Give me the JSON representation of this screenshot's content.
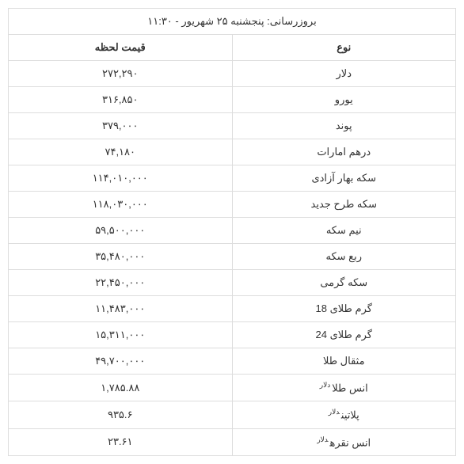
{
  "update_label": "بروزرسانی: پنجشنبه ۲۵ شهریور - ۱۱:۳۰",
  "columns": {
    "type": "نوع",
    "price": "قیمت لحظه"
  },
  "usd_suffix": "دلار",
  "rows": [
    {
      "type": "دلار",
      "price": "۲۷۲,۲۹۰",
      "usd": false
    },
    {
      "type": "یورو",
      "price": "۳۱۶,۸۵۰",
      "usd": false
    },
    {
      "type": "پوند",
      "price": "۳۷۹,۰۰۰",
      "usd": false
    },
    {
      "type": "درهم امارات",
      "price": "۷۴,۱۸۰",
      "usd": false
    },
    {
      "type": "سکه بهار آزادی",
      "price": "۱۱۴,۰۱۰,۰۰۰",
      "usd": false
    },
    {
      "type": "سکه طرح جدید",
      "price": "۱۱۸,۰۳۰,۰۰۰",
      "usd": false
    },
    {
      "type": "نیم سکه",
      "price": "۵۹,۵۰۰,۰۰۰",
      "usd": false
    },
    {
      "type": "ربع سکه",
      "price": "۳۵,۴۸۰,۰۰۰",
      "usd": false
    },
    {
      "type": "سکه گرمی",
      "price": "۲۲,۴۵۰,۰۰۰",
      "usd": false
    },
    {
      "type": "گرم طلای 18",
      "price": "۱۱,۴۸۳,۰۰۰",
      "usd": false
    },
    {
      "type": "گرم طلای 24",
      "price": "۱۵,۳۱۱,۰۰۰",
      "usd": false
    },
    {
      "type": "مثقال طلا",
      "price": "۴۹,۷۰۰,۰۰۰",
      "usd": false
    },
    {
      "type": "انس طلا",
      "price": "۱,۷۸۵.۸۸",
      "usd": true
    },
    {
      "type": "پلاتین",
      "price": "۹۳۵.۶",
      "usd": true
    },
    {
      "type": "انس نقره",
      "price": "۲۳.۶۱",
      "usd": true
    }
  ],
  "colors": {
    "border": "#dddddd",
    "text": "#333333",
    "background": "#ffffff"
  }
}
